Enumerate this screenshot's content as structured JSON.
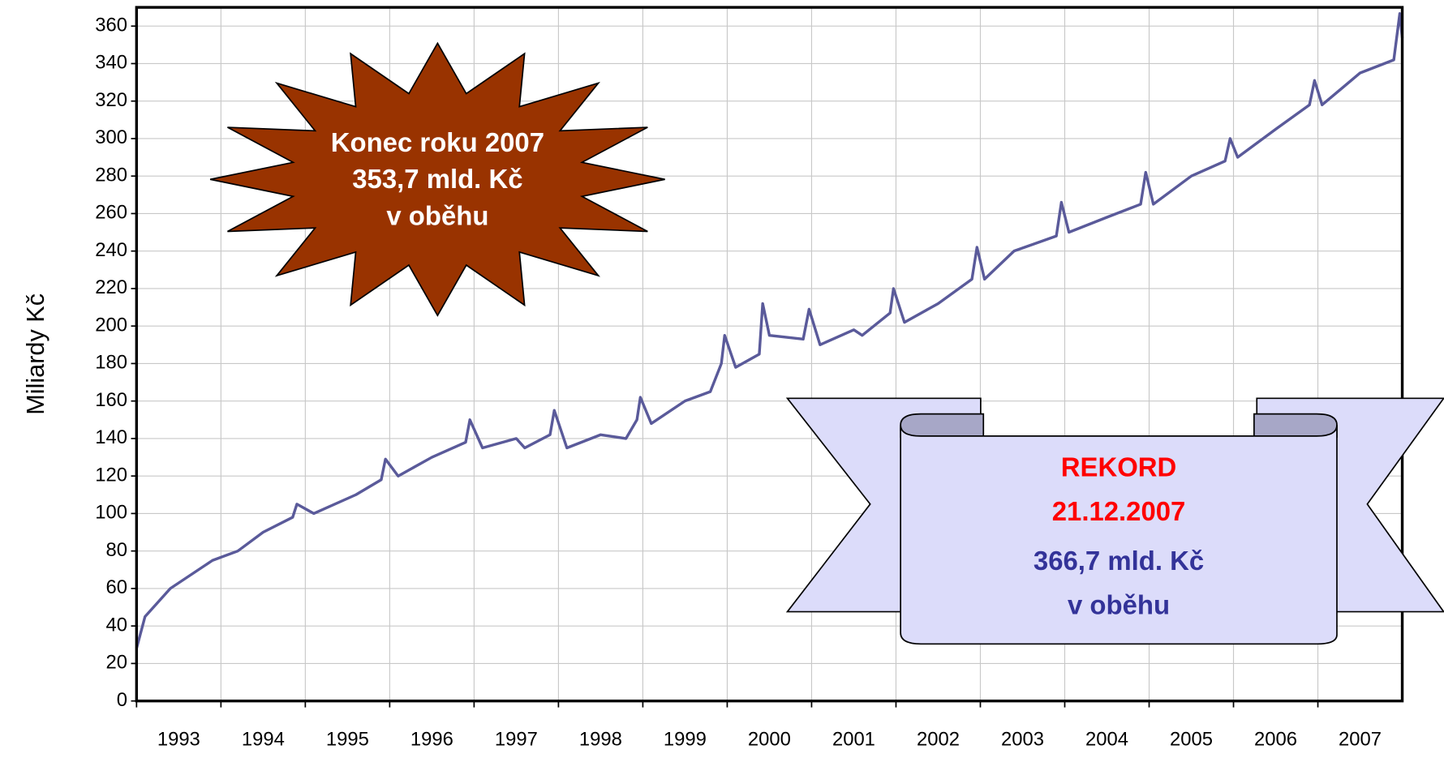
{
  "chart_data": {
    "type": "line",
    "y_label": "Miliardy Kč",
    "xlim": [
      1993,
      2008
    ],
    "ylim": [
      0,
      370
    ],
    "xticks": [
      {
        "value": 1993,
        "label": "1993"
      },
      {
        "value": 1994,
        "label": "1994"
      },
      {
        "value": 1995,
        "label": "1995"
      },
      {
        "value": 1996,
        "label": "1996"
      },
      {
        "value": 1997,
        "label": "1997"
      },
      {
        "value": 1998,
        "label": "1998"
      },
      {
        "value": 1999,
        "label": "1999"
      },
      {
        "value": 2000,
        "label": "2000"
      },
      {
        "value": 2001,
        "label": "2001"
      },
      {
        "value": 2002,
        "label": "2002"
      },
      {
        "value": 2003,
        "label": "2003"
      },
      {
        "value": 2004,
        "label": "2004"
      },
      {
        "value": 2005,
        "label": "2005"
      },
      {
        "value": 2006,
        "label": "2006"
      },
      {
        "value": 2007,
        "label": "2007"
      }
    ],
    "yticks": [
      0,
      20,
      40,
      60,
      80,
      100,
      120,
      140,
      160,
      180,
      200,
      220,
      240,
      260,
      280,
      300,
      320,
      340,
      360
    ],
    "grid": true,
    "color": "#5a5a9a",
    "x": [
      1993.0,
      1993.1,
      1993.4,
      1993.9,
      1994.2,
      1994.5,
      1994.85,
      1994.9,
      1995.1,
      1995.6,
      1995.9,
      1995.95,
      1996.1,
      1996.5,
      1996.9,
      1996.95,
      1997.1,
      1997.5,
      1997.6,
      1997.9,
      1997.95,
      1998.1,
      1998.5,
      1998.8,
      1998.93,
      1998.97,
      1999.1,
      1999.5,
      1999.8,
      1999.93,
      1999.97,
      2000.1,
      2000.38,
      2000.42,
      2000.5,
      2000.9,
      2000.97,
      2001.1,
      2001.5,
      2001.6,
      2001.93,
      2001.97,
      2002.1,
      2002.5,
      2002.9,
      2002.96,
      2003.05,
      2003.4,
      2003.9,
      2003.96,
      2004.05,
      2004.5,
      2004.9,
      2004.96,
      2005.05,
      2005.5,
      2005.9,
      2005.96,
      2006.05,
      2006.5,
      2006.9,
      2006.96,
      2007.05,
      2007.5,
      2007.9,
      2007.97,
      2008.0
    ],
    "values": [
      28,
      45,
      60,
      75,
      80,
      90,
      98,
      105,
      100,
      110,
      118,
      129,
      120,
      130,
      138,
      150,
      135,
      140,
      135,
      142,
      155,
      135,
      142,
      140,
      150,
      162,
      148,
      160,
      165,
      180,
      195,
      178,
      185,
      212,
      195,
      193,
      209,
      190,
      198,
      195,
      207,
      220,
      202,
      212,
      225,
      242,
      225,
      240,
      248,
      266,
      250,
      258,
      265,
      282,
      265,
      280,
      288,
      300,
      290,
      305,
      318,
      331,
      318,
      335,
      342,
      366.7,
      353.7
    ],
    "annotations": [
      [
        "Konec roku 2007",
        "353,7 mld. Kč",
        "v oběhu"
      ],
      [
        "REKORD",
        "21.12.2007",
        "366,7 mld. Kč",
        "v oběhu"
      ]
    ]
  }
}
